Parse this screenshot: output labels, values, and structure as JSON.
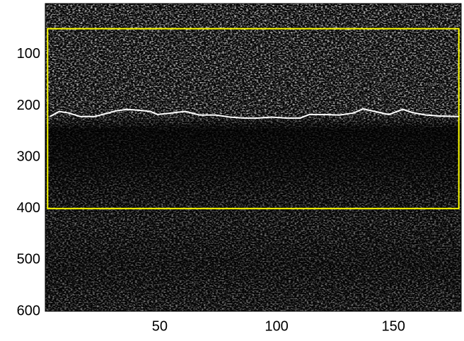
{
  "chart_data": {
    "type": "image",
    "xlim": [
      1,
      179
    ],
    "ylim": [
      1,
      600
    ],
    "y_reversed": true,
    "xticks": [
      50,
      100,
      150
    ],
    "yticks": [
      100,
      200,
      300,
      400,
      500,
      600
    ],
    "box": {
      "x": [
        2,
        178
      ],
      "y": [
        50,
        400
      ],
      "color": "#ffff00"
    },
    "series": [
      {
        "color": "#ffffff",
        "x": [
          3,
          7,
          11,
          16,
          22,
          28,
          31,
          36,
          42,
          46,
          49,
          55,
          61,
          67,
          74,
          80,
          86,
          92,
          98,
          104,
          110,
          114,
          120,
          127,
          133,
          137,
          142,
          148,
          154,
          158,
          164,
          170,
          178
        ],
        "values": [
          221,
          211,
          214,
          221,
          221,
          214,
          210,
          207,
          209,
          211,
          217,
          214,
          211,
          218,
          218,
          222,
          224,
          224,
          222,
          224,
          224,
          217,
          217,
          218,
          214,
          206,
          211,
          217,
          207,
          213,
          218,
          220,
          221
        ]
      }
    ]
  }
}
